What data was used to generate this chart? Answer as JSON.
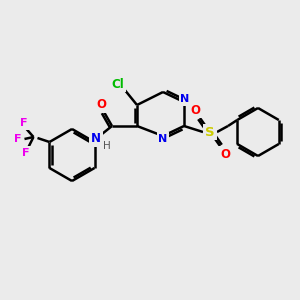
{
  "bg_color": "#ebebeb",
  "bond_color": "#000000",
  "bond_width": 1.8,
  "atom_colors": {
    "C": "#000000",
    "N": "#0000ee",
    "O": "#ff0000",
    "S": "#cccc00",
    "Cl": "#00bb00",
    "F": "#ee00ee",
    "H": "#555555"
  },
  "figsize": [
    3.0,
    3.0
  ],
  "dpi": 100
}
